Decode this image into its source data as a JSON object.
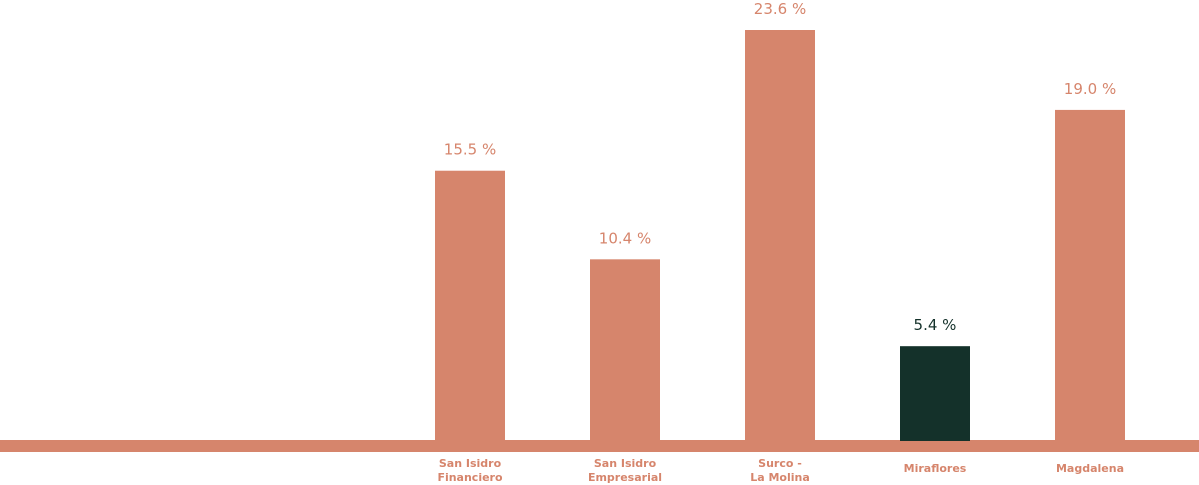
{
  "chart_data": {
    "type": "bar",
    "categories": [
      [
        "San Isidro",
        "Financiero"
      ],
      [
        "San Isidro",
        "Empresarial"
      ],
      [
        "Surco -",
        "La Molina"
      ],
      [
        "Miraflores"
      ],
      [
        "Magdalena"
      ]
    ],
    "values": [
      15.5,
      10.4,
      23.6,
      5.4,
      19.0
    ],
    "value_labels": [
      "15.5 %",
      "10.4 %",
      "23.6 %",
      "5.4 %",
      "19.0 %"
    ],
    "highlight_index": 3,
    "colors": {
      "bar": "#d6856c",
      "highlight": "#14312a",
      "baseline": "#d6856c",
      "label": "#d6856c",
      "highlight_label": "#14312a"
    },
    "title": "",
    "xlabel": "",
    "ylabel": "",
    "ylim": [
      0,
      25
    ],
    "grid": false,
    "legend": "none"
  }
}
